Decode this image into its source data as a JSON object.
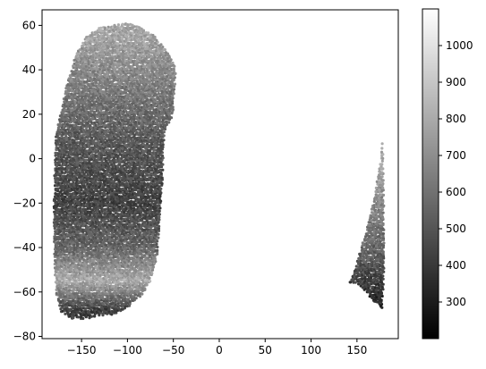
{
  "chart_data": {
    "type": "scatter",
    "title": "",
    "xlabel": "",
    "ylabel": "",
    "xlim": [
      -193,
      195
    ],
    "ylim": [
      -81,
      67
    ],
    "x_ticks": [
      "−150",
      "−100",
      "−50",
      "0",
      "50",
      "100",
      "150"
    ],
    "x_tick_values": [
      -150,
      -100,
      -50,
      0,
      50,
      100,
      150
    ],
    "y_ticks": [
      "60",
      "40",
      "20",
      "0",
      "−20",
      "−40",
      "−60",
      "−80"
    ],
    "y_tick_values": [
      60,
      40,
      20,
      0,
      -20,
      -40,
      -60,
      -80
    ],
    "grid": false,
    "colormap": "gray",
    "colorbar": {
      "range": [
        200,
        1100
      ],
      "ticks": [
        "1000",
        "900",
        "800",
        "700",
        "600",
        "500",
        "400",
        "300"
      ],
      "tick_values": [
        1000,
        900,
        800,
        700,
        600,
        500,
        400,
        300
      ]
    },
    "regions": [
      {
        "name": "western swath",
        "outline": [
          [
            -178,
            10
          ],
          [
            -168,
            30
          ],
          [
            -158,
            45
          ],
          [
            -145,
            55
          ],
          [
            -130,
            59
          ],
          [
            -115,
            60
          ],
          [
            -100,
            61
          ],
          [
            -85,
            59
          ],
          [
            -70,
            55
          ],
          [
            -55,
            47
          ],
          [
            -47,
            40
          ],
          [
            -50,
            20
          ],
          [
            -60,
            12
          ],
          [
            -62,
            -10
          ],
          [
            -65,
            -30
          ],
          [
            -68,
            -45
          ],
          [
            -75,
            -55
          ],
          [
            -85,
            -62
          ],
          [
            -100,
            -67
          ],
          [
            -115,
            -70
          ],
          [
            -130,
            -71
          ],
          [
            -145,
            -72
          ],
          [
            -160,
            -72
          ],
          [
            -172,
            -69
          ],
          [
            -178,
            -60
          ],
          [
            -180,
            -40
          ],
          [
            -180,
            -10
          ]
        ],
        "approx_values": [
          {
            "lat": 55,
            "value": 780
          },
          {
            "lat": 35,
            "value": 650
          },
          {
            "lat": 10,
            "value": 520
          },
          {
            "lat": -20,
            "value": 430
          },
          {
            "lat": -40,
            "value": 560
          },
          {
            "lat": -55,
            "value": 800
          },
          {
            "lat": -68,
            "value": 420
          }
        ]
      },
      {
        "name": "eastern swath",
        "outline": [
          [
            178,
            9
          ],
          [
            176,
            0
          ],
          [
            170,
            -15
          ],
          [
            162,
            -30
          ],
          [
            153,
            -42
          ],
          [
            146,
            -52
          ],
          [
            142,
            -56
          ],
          [
            150,
            -56
          ],
          [
            160,
            -60
          ],
          [
            170,
            -65
          ],
          [
            178,
            -68
          ],
          [
            180,
            -40
          ]
        ],
        "approx_values": [
          {
            "lat": 5,
            "value": 820
          },
          {
            "lat": -20,
            "value": 680
          },
          {
            "lat": -45,
            "value": 520
          },
          {
            "lat": -62,
            "value": 350
          }
        ]
      }
    ]
  }
}
